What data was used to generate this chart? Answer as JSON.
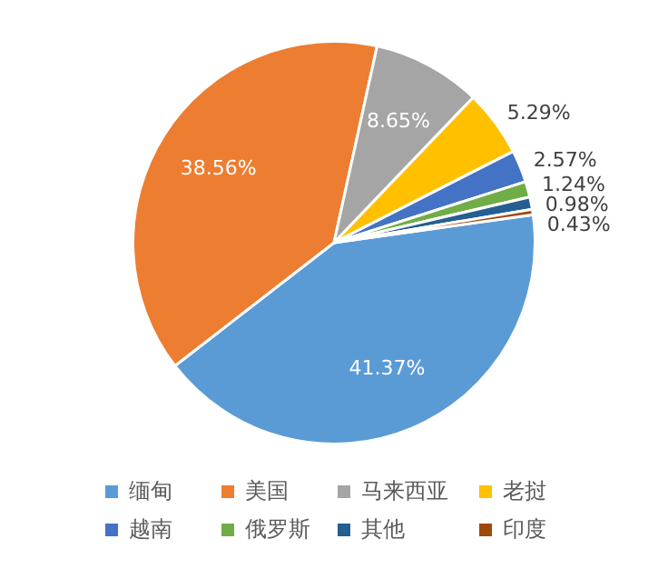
{
  "chart_data": {
    "type": "pie",
    "categories": [
      "缅甸",
      "美国",
      "马来西亚",
      "老挝",
      "越南",
      "俄罗斯",
      "其他",
      "印度"
    ],
    "values": [
      41.37,
      38.56,
      8.65,
      5.29,
      2.57,
      1.24,
      0.98,
      0.43
    ],
    "colors": [
      "#5b9bd5",
      "#ed7d31",
      "#a5a5a5",
      "#ffc000",
      "#4472c4",
      "#70ad47",
      "#255e91",
      "#9e480e"
    ],
    "value_labels": [
      "41.37%",
      "38.56%",
      "8.65%",
      "5.29%",
      "2.57%",
      "1.24%",
      "0.98%",
      "0.43%"
    ],
    "legend": "bottom"
  }
}
